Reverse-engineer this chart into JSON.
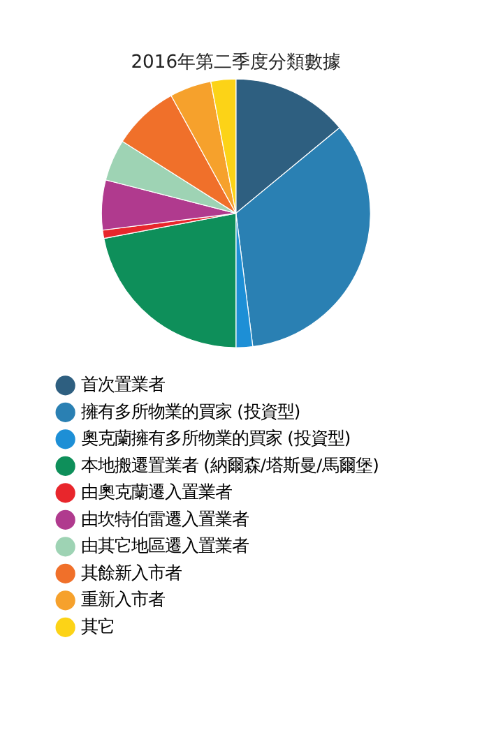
{
  "chart_data": {
    "type": "pie",
    "title": "2016年第二季度分類數據",
    "categories": [
      "首次置業者",
      "擁有多所物業的買家 (投資型)",
      "奧克蘭擁有多所物業的買家 (投資型)",
      "本地搬遷置業者 (納爾森/塔斯曼/馬爾堡)",
      "由奧克蘭遷入置業者",
      "由坎特伯雷遷入置業者",
      "由其它地區遷入置業者",
      "其餘新入市者",
      "重新入市者",
      "其它"
    ],
    "values": [
      14,
      34,
      2,
      22,
      1,
      6,
      5,
      8,
      5,
      3
    ],
    "colors": [
      "#2e5f80",
      "#2a80b3",
      "#1d8fd6",
      "#0e8f5a",
      "#e8262c",
      "#b03a8e",
      "#9ed3b4",
      "#f0702a",
      "#f6a12c",
      "#fcd317"
    ],
    "legend": "bottom"
  }
}
